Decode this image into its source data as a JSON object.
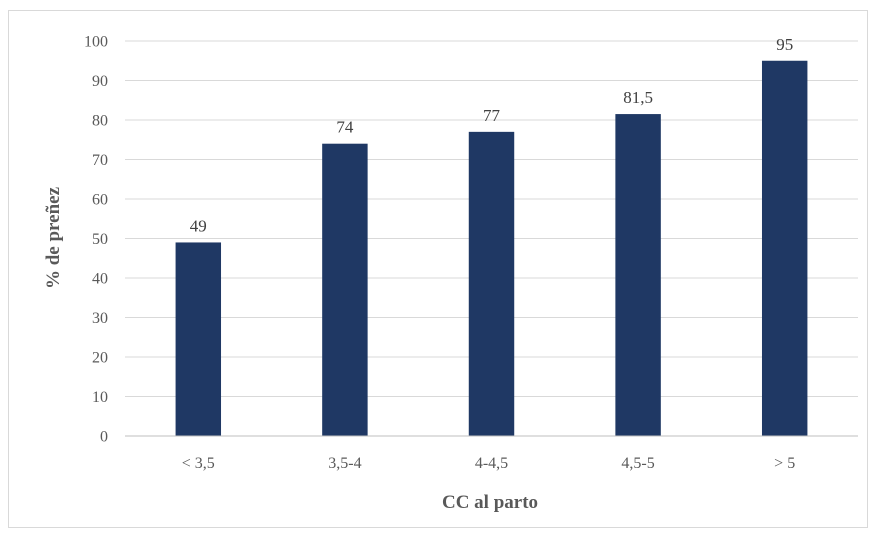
{
  "chart_data": {
    "type": "bar",
    "title": "",
    "xlabel": "CC al parto",
    "ylabel": "% de preñez",
    "categories": [
      "< 3,5",
      "3,5-4",
      "4-4,5",
      "4,5-5",
      "> 5"
    ],
    "values": [
      49,
      74,
      77,
      81.5,
      95
    ],
    "value_labels": [
      "49",
      "74",
      "77",
      "81,5",
      "95"
    ],
    "ylim": [
      0,
      100
    ],
    "yticks": [
      0,
      10,
      20,
      30,
      40,
      50,
      60,
      70,
      80,
      90,
      100
    ],
    "grid": true,
    "legend": "none",
    "bar_color": "#1f3864",
    "grid_color": "#d9d9d9"
  }
}
